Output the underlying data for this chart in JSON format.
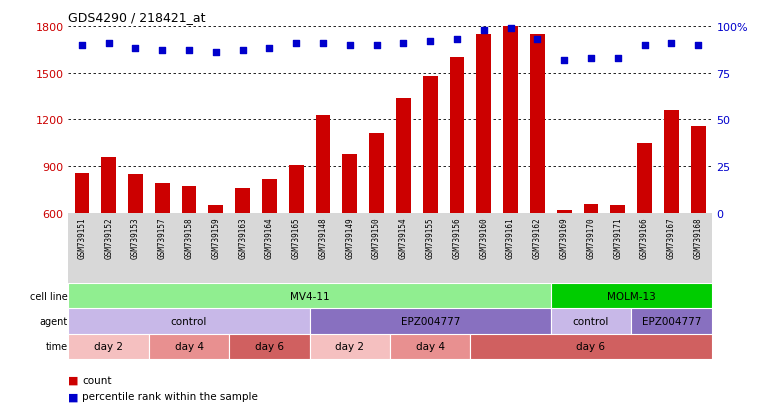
{
  "title": "GDS4290 / 218421_at",
  "samples": [
    "GSM739151",
    "GSM739152",
    "GSM739153",
    "GSM739157",
    "GSM739158",
    "GSM739159",
    "GSM739163",
    "GSM739164",
    "GSM739165",
    "GSM739148",
    "GSM739149",
    "GSM739150",
    "GSM739154",
    "GSM739155",
    "GSM739156",
    "GSM739160",
    "GSM739161",
    "GSM739162",
    "GSM739169",
    "GSM739170",
    "GSM739171",
    "GSM739166",
    "GSM739167",
    "GSM739168"
  ],
  "counts": [
    855,
    960,
    850,
    790,
    775,
    650,
    760,
    820,
    910,
    1230,
    975,
    1110,
    1340,
    1480,
    1600,
    1750,
    1800,
    1750,
    620,
    660,
    650,
    1050,
    1260,
    1160
  ],
  "percentile_ranks": [
    90,
    91,
    88,
    87,
    87,
    86,
    87,
    88,
    91,
    91,
    90,
    90,
    91,
    92,
    93,
    98,
    99,
    93,
    82,
    83,
    83,
    90,
    91,
    90
  ],
  "ylim_left": [
    600,
    1800
  ],
  "ylim_right": [
    0,
    100
  ],
  "yticks_left": [
    600,
    900,
    1200,
    1500,
    1800
  ],
  "yticks_right": [
    0,
    25,
    50,
    75,
    100
  ],
  "bar_color": "#cc0000",
  "dot_color": "#0000cc",
  "grid_color": "#000000",
  "cell_line_groups": [
    {
      "label": "MV4-11",
      "start": 0,
      "end": 17,
      "color": "#90ee90"
    },
    {
      "label": "MOLM-13",
      "start": 18,
      "end": 23,
      "color": "#00cc00"
    }
  ],
  "agent_groups": [
    {
      "label": "control",
      "start": 0,
      "end": 8,
      "color": "#c8b8e8"
    },
    {
      "label": "EPZ004777",
      "start": 9,
      "end": 17,
      "color": "#8870c0"
    },
    {
      "label": "control",
      "start": 18,
      "end": 20,
      "color": "#c8b8e8"
    },
    {
      "label": "EPZ004777",
      "start": 21,
      "end": 23,
      "color": "#8870c0"
    }
  ],
  "time_groups": [
    {
      "label": "day 2",
      "start": 0,
      "end": 2,
      "color": "#f5c0c0"
    },
    {
      "label": "day 4",
      "start": 3,
      "end": 5,
      "color": "#e89090"
    },
    {
      "label": "day 6",
      "start": 6,
      "end": 8,
      "color": "#d06060"
    },
    {
      "label": "day 2",
      "start": 9,
      "end": 11,
      "color": "#f5c0c0"
    },
    {
      "label": "day 4",
      "start": 12,
      "end": 14,
      "color": "#e89090"
    },
    {
      "label": "day 6",
      "start": 15,
      "end": 23,
      "color": "#d06060"
    }
  ],
  "bg_color": "#ffffff",
  "sample_label_bg": "#d8d8d8",
  "row_label_fontsize": 7,
  "row_content_fontsize": 7.5,
  "sample_fontsize": 5.5,
  "title_fontsize": 9,
  "bar_width": 0.55
}
